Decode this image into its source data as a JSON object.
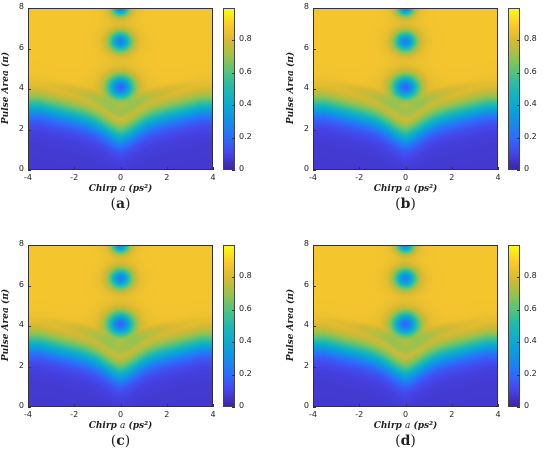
{
  "colors": {
    "low": "#3e26a8",
    "mid": "#1fb7c7",
    "high": "#f9fb0e"
  },
  "chart_data": [
    {
      "type": "heatmap",
      "panel_label_open": "(",
      "panel_label": "a",
      "panel_label_close": ")",
      "xlabel_prefix": "Chirp ",
      "xlabel_var": "a",
      "xlabel_unit": " (ps²)",
      "ylabel": "Pulse Area (π)",
      "xlim": [
        -4,
        4
      ],
      "ylim": [
        0,
        8
      ],
      "xticks": [
        "-4",
        "-2",
        "0",
        "2",
        "4"
      ],
      "yticks": [
        "0",
        "2",
        "4",
        "6",
        "8"
      ],
      "colorbar_ticks": [
        "0",
        "0.2",
        "0.4",
        "0.6",
        "0.8"
      ],
      "colorbar_lim": [
        0,
        1
      ],
      "colormap": "parula"
    },
    {
      "type": "heatmap",
      "panel_label_open": "(",
      "panel_label": "b",
      "panel_label_close": ")",
      "xlabel_prefix": "Chirp ",
      "xlabel_var": "a",
      "xlabel_unit": " (ps²)",
      "ylabel": "Pulse Area (π)",
      "xlim": [
        -4,
        4
      ],
      "ylim": [
        0,
        8
      ],
      "xticks": [
        "-4",
        "-2",
        "0",
        "2",
        "4"
      ],
      "yticks": [
        "0",
        "2",
        "4",
        "6",
        "8"
      ],
      "colorbar_ticks": [
        "0",
        "0.2",
        "0.4",
        "0.6",
        "0.8"
      ],
      "colorbar_lim": [
        0,
        1
      ],
      "colormap": "parula"
    },
    {
      "type": "heatmap",
      "panel_label_open": "(",
      "panel_label": "c",
      "panel_label_close": ")",
      "xlabel_prefix": "Chirp ",
      "xlabel_var": "a",
      "xlabel_unit": " (ps²)",
      "ylabel": "Pulse Area (π)",
      "xlim": [
        -4,
        4
      ],
      "ylim": [
        0,
        8
      ],
      "xticks": [
        "-4",
        "-2",
        "0",
        "2",
        "4"
      ],
      "yticks": [
        "0",
        "2",
        "4",
        "6",
        "8"
      ],
      "colorbar_ticks": [
        "0",
        "0.2",
        "0.4",
        "0.6",
        "0.8"
      ],
      "colorbar_lim": [
        0,
        1
      ],
      "colormap": "parula"
    },
    {
      "type": "heatmap",
      "panel_label_open": "(",
      "panel_label": "d",
      "panel_label_close": ")",
      "xlabel_prefix": "Chirp ",
      "xlabel_var": "a",
      "xlabel_unit": " (ps²)",
      "ylabel": "Pulse Area (π)",
      "xlim": [
        -4,
        4
      ],
      "ylim": [
        0,
        8
      ],
      "xticks": [
        "-4",
        "-2",
        "0",
        "2",
        "4"
      ],
      "yticks": [
        "0",
        "2",
        "4",
        "6",
        "8"
      ],
      "colorbar_ticks": [
        "0",
        "0.2",
        "0.4",
        "0.6",
        "0.8"
      ],
      "colorbar_lim": [
        0,
        1
      ],
      "colormap": "parula"
    }
  ]
}
